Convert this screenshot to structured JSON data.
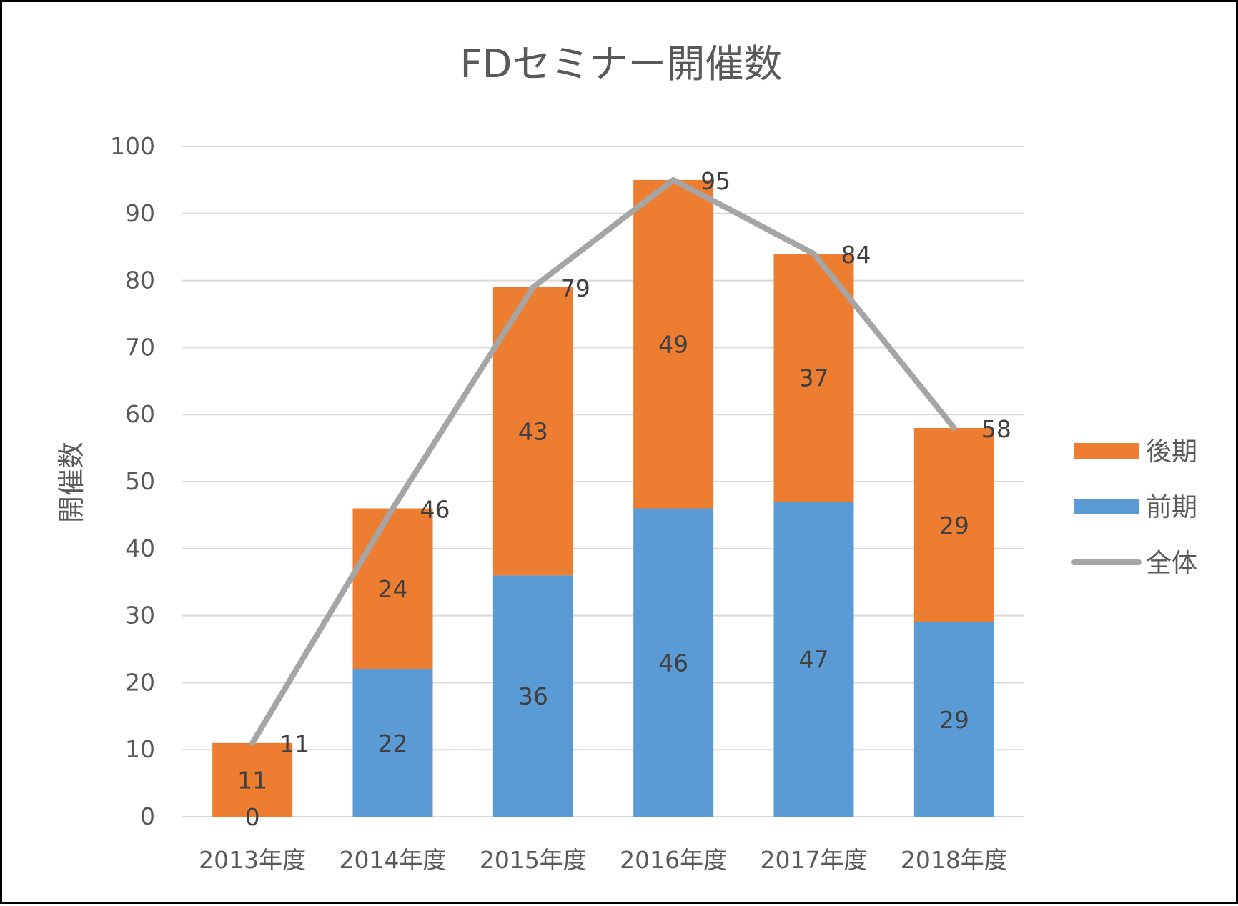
{
  "chart_data": {
    "type": "bar",
    "stacked": true,
    "title": "FDセミナー開催数",
    "xlabel": "",
    "ylabel": "開催数",
    "ylim": [
      0,
      100
    ],
    "yticks": [
      0,
      10,
      20,
      30,
      40,
      50,
      60,
      70,
      80,
      90,
      100
    ],
    "grid": true,
    "legend_position": "right",
    "categories": [
      "2013年度",
      "2014年度",
      "2015年度",
      "2016年度",
      "2017年度",
      "2018年度"
    ],
    "series": [
      {
        "name": "前期",
        "kind": "bar",
        "color": "#5B9BD5",
        "values": [
          0,
          22,
          36,
          46,
          47,
          29
        ]
      },
      {
        "name": "後期",
        "kind": "bar",
        "color": "#ED7D31",
        "values": [
          11,
          24,
          43,
          49,
          37,
          29
        ]
      },
      {
        "name": "全体",
        "kind": "line",
        "color": "#A5A5A5",
        "values": [
          11,
          46,
          79,
          95,
          84,
          58
        ]
      }
    ],
    "legend_order": [
      "後期",
      "前期",
      "全体"
    ]
  }
}
